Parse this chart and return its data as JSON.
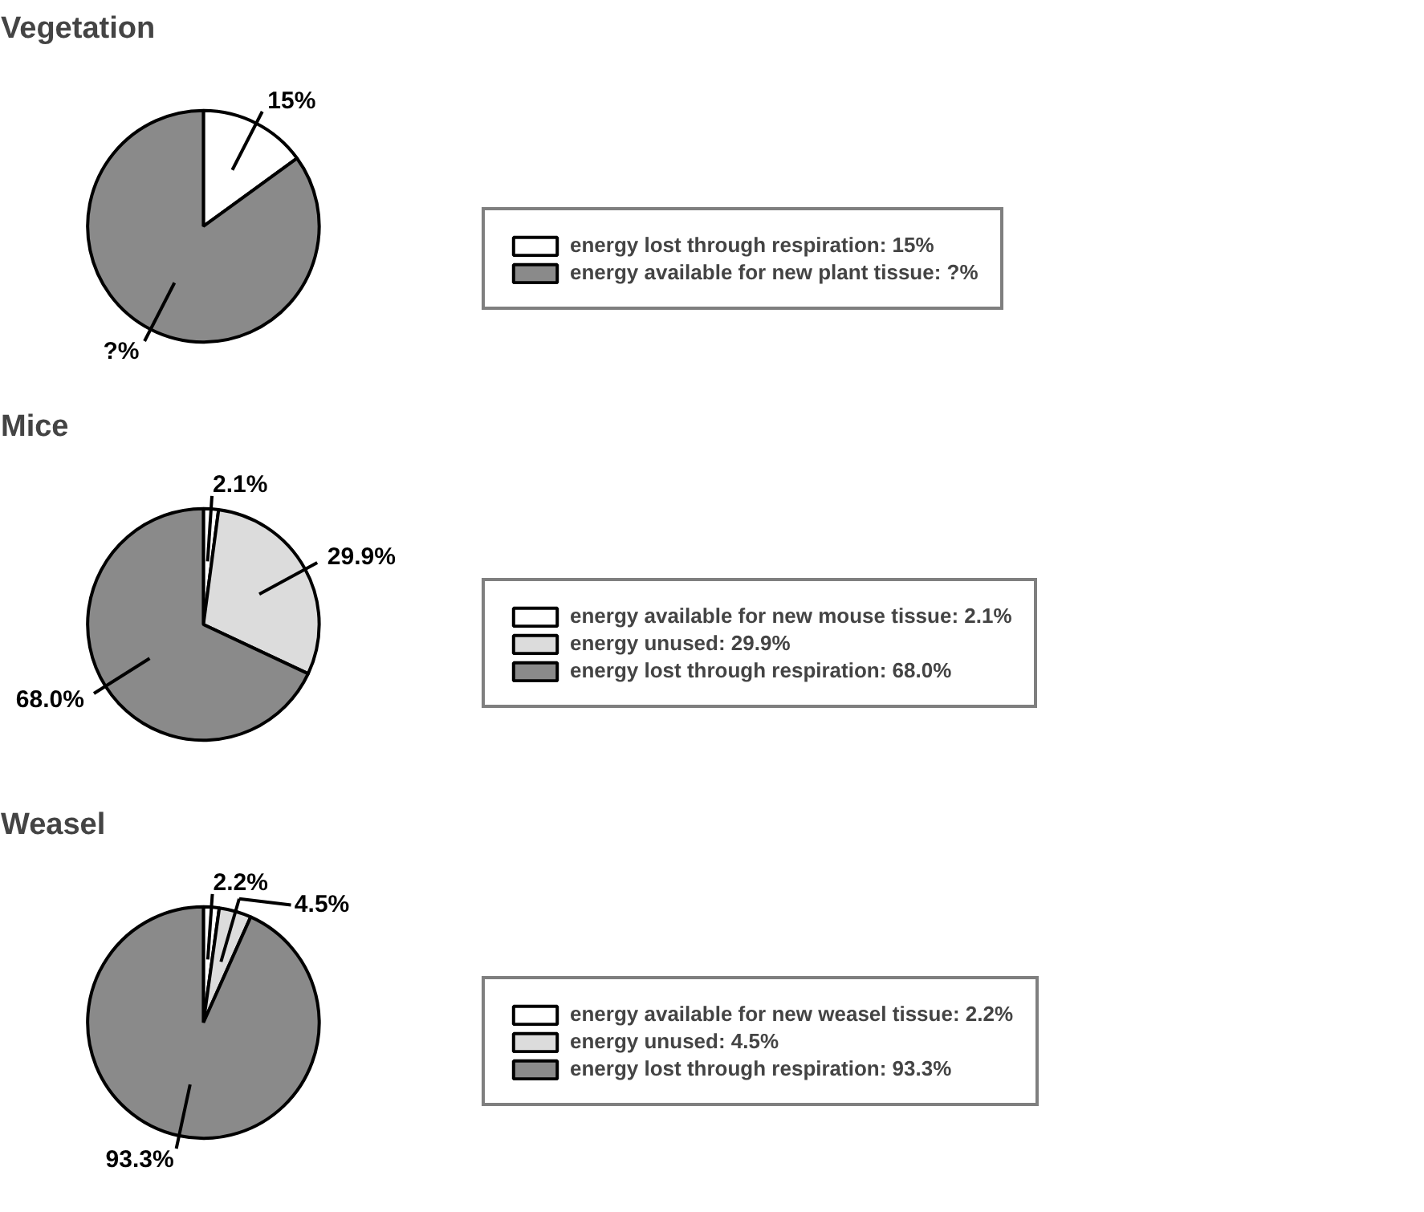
{
  "chart_data": [
    {
      "type": "pie",
      "title": "Vegetation",
      "categories": [
        "energy lost through respiration: 15%",
        "energy available for new plant tissue: ?%"
      ],
      "values": [
        15,
        85
      ],
      "colors": [
        "#ffffff",
        "#8a8a8a"
      ],
      "value_labels": [
        "15%",
        "?%"
      ],
      "legend": "right"
    },
    {
      "type": "pie",
      "title": "Mice",
      "categories": [
        "energy available for new mouse tissue: 2.1%",
        "energy unused: 29.9%",
        "energy lost through respiration: 68.0%"
      ],
      "values": [
        2.1,
        29.9,
        68.0
      ],
      "colors": [
        "#ffffff",
        "#dcdcdc",
        "#8a8a8a"
      ],
      "value_labels": [
        "2.1%",
        "29.9%",
        "68.0%"
      ],
      "legend": "right"
    },
    {
      "type": "pie",
      "title": "Weasel",
      "categories": [
        "energy available for new weasel tissue: 2.2%",
        "energy unused: 4.5%",
        "energy lost through respiration: 93.3%"
      ],
      "values": [
        2.2,
        4.5,
        93.3
      ],
      "colors": [
        "#ffffff",
        "#dcdcdc",
        "#8a8a8a"
      ],
      "value_labels": [
        "2.2%",
        "4.5%",
        "93.3%"
      ],
      "legend": "right"
    }
  ]
}
